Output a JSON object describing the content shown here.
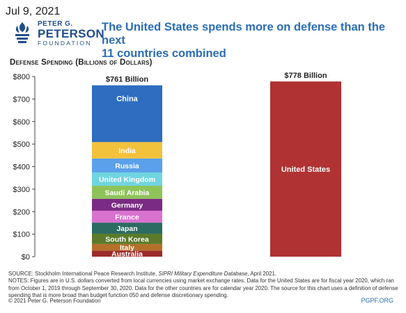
{
  "header": {
    "date": "Jul 9, 2021",
    "logo": {
      "line1": "PETER G.",
      "line2": "PETERSON",
      "line3": "FOUNDATION"
    },
    "headline_line1": "The United States spends more on defense than the next",
    "headline_line2": "11 countries combined"
  },
  "colors": {
    "accent": "#2a6db5",
    "logo": "#1f4e8c",
    "us_bar": "#b03232"
  },
  "chart_data": {
    "type": "bar",
    "stacked": true,
    "title": "Defense Spending (Billions of Dollars)",
    "ylim": [
      0,
      800
    ],
    "yticks": [
      0,
      100,
      200,
      300,
      400,
      500,
      600,
      700,
      800
    ],
    "ytick_labels": [
      "$0",
      "$100",
      "$200",
      "$300",
      "$400",
      "$500",
      "$600",
      "$700",
      "$800"
    ],
    "grid": false,
    "bars": [
      {
        "total_label": "$761 Billion",
        "total": 761,
        "segments": [
          {
            "name": "Australia",
            "value": 27,
            "color": "#9c2b2b"
          },
          {
            "name": "Italy",
            "value": 29,
            "color": "#b5702a"
          },
          {
            "name": "South Korea",
            "value": 46,
            "color": "#5c7a2a"
          },
          {
            "name": "Japan",
            "value": 49,
            "color": "#2b6b62"
          },
          {
            "name": "France",
            "value": 53,
            "color": "#d873cf"
          },
          {
            "name": "Germany",
            "value": 53,
            "color": "#7a2b83"
          },
          {
            "name": "Saudi Arabia",
            "value": 58,
            "color": "#8fc35a"
          },
          {
            "name": "United Kingdom",
            "value": 59,
            "color": "#6fd5e0"
          },
          {
            "name": "Russia",
            "value": 62,
            "color": "#5aa0ea"
          },
          {
            "name": "India",
            "value": 73,
            "color": "#f3c23c"
          },
          {
            "name": "China",
            "value": 252,
            "color": "#2e6dbf"
          }
        ]
      },
      {
        "total_label": "$778 Billion",
        "total": 778,
        "segments": [
          {
            "name": "United States",
            "value": 778,
            "color": "#b03232"
          }
        ]
      }
    ]
  },
  "footer": {
    "source_prefix": "SOURCE: Stockholm International Peace Research Institute, ",
    "source_title": "SIPRI Military Expenditure Database",
    "source_suffix": ", April 2021.",
    "notes": "NOTES: Figures are in U.S. dollars converted from local currencies using market exchange rates. Data for the United States are for fiscal year 2020, which ran from October 1, 2019 through September 30, 2020. Data for the other countries are for calendar year 2020. The source for this chart uses a definition of defense spending that is more broad than budget function 050 and defense discretionary spending.",
    "copyright": "© 2021 Peter G. Peterson Foundation",
    "site": "PGPF.ORG"
  }
}
